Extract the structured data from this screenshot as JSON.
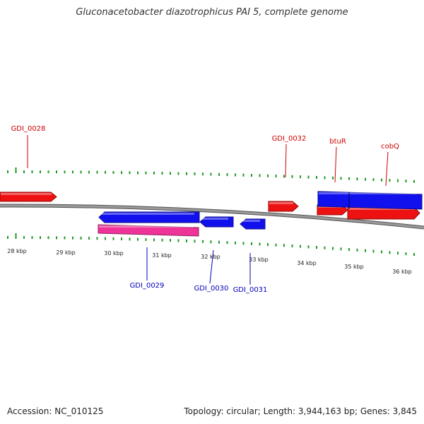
{
  "title": "Gluconacetobacter diazotrophicus PAI 5, complete genome",
  "footer": {
    "accession": "Accession: NC_010125",
    "summary": "Topology: circular; Length: 3,944,163 bp; Genes: 3,845"
  },
  "colors": {
    "forward_gene": "#ee1111",
    "reverse_gene": "#1111ee",
    "rna_gene": "#ee3399",
    "label_forward": "#cc0000",
    "label_reverse": "#0000bb",
    "backbone": "#808080",
    "tick": "#229922"
  },
  "ruler": {
    "unit": "kbp",
    "labels": [
      "28 kbp",
      "29 kbp",
      "30 kbp",
      "31 kbp",
      "32 kbp",
      "33 kbp",
      "34 kbp",
      "35 kbp",
      "36 kbp"
    ]
  },
  "genes": [
    {
      "label": "GDI_0028",
      "strand": "forward"
    },
    {
      "label": "",
      "strand": "reverse"
    },
    {
      "label": "GDI_0029",
      "strand": "reverse",
      "type": "rna"
    },
    {
      "label": "GDI_0030",
      "strand": "reverse"
    },
    {
      "label": "GDI_0031",
      "strand": "reverse"
    },
    {
      "label": "GDI_0032",
      "strand": "forward"
    },
    {
      "label": "btuR",
      "strand": "forward"
    },
    {
      "label": "cobQ",
      "strand": "forward"
    },
    {
      "label": "",
      "strand": "reverse"
    }
  ]
}
